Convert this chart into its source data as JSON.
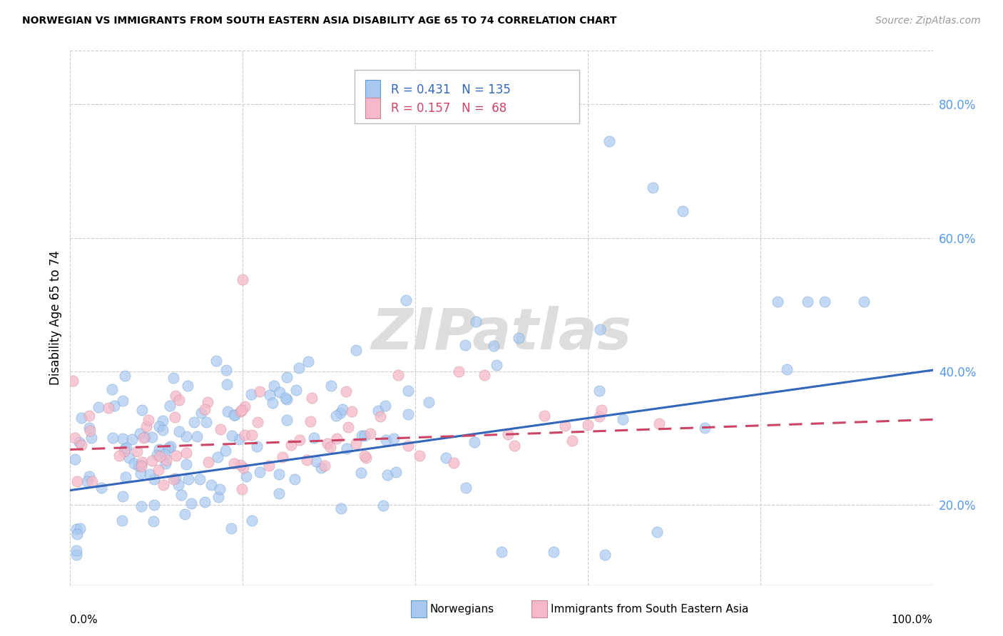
{
  "title": "NORWEGIAN VS IMMIGRANTS FROM SOUTH EASTERN ASIA DISABILITY AGE 65 TO 74 CORRELATION CHART",
  "source": "Source: ZipAtlas.com",
  "ylabel": "Disability Age 65 to 74",
  "xlim": [
    0.0,
    1.0
  ],
  "ylim": [
    0.08,
    0.88
  ],
  "yticks": [
    0.2,
    0.4,
    0.6,
    0.8
  ],
  "ytick_labels": [
    "20.0%",
    "40.0%",
    "60.0%",
    "80.0%"
  ],
  "xticks": [
    0.0,
    0.2,
    0.4,
    0.6,
    0.8,
    1.0
  ],
  "norwegian_color": "#A8C8F0",
  "norwegian_edge_color": "#6699CC",
  "immigrant_color": "#F5B8C8",
  "immigrant_edge_color": "#CC8899",
  "norwegian_line_color": "#3366BB",
  "immigrant_line_color": "#CC4466",
  "ytick_color": "#5599EE",
  "watermark": "ZIPatlas",
  "watermark_color": "#DDDDDD",
  "background_color": "#FFFFFF",
  "grid_color": "#CCCCCC",
  "norwegian_line_x": [
    0.0,
    1.0
  ],
  "norwegian_line_y": [
    0.222,
    0.402
  ],
  "immigrant_line_x": [
    0.0,
    1.0
  ],
  "immigrant_line_y": [
    0.283,
    0.328
  ],
  "legend_r1": "R = 0.431",
  "legend_n1": "N = 135",
  "legend_r2": "R = 0.157",
  "legend_n2": "N =  68"
}
